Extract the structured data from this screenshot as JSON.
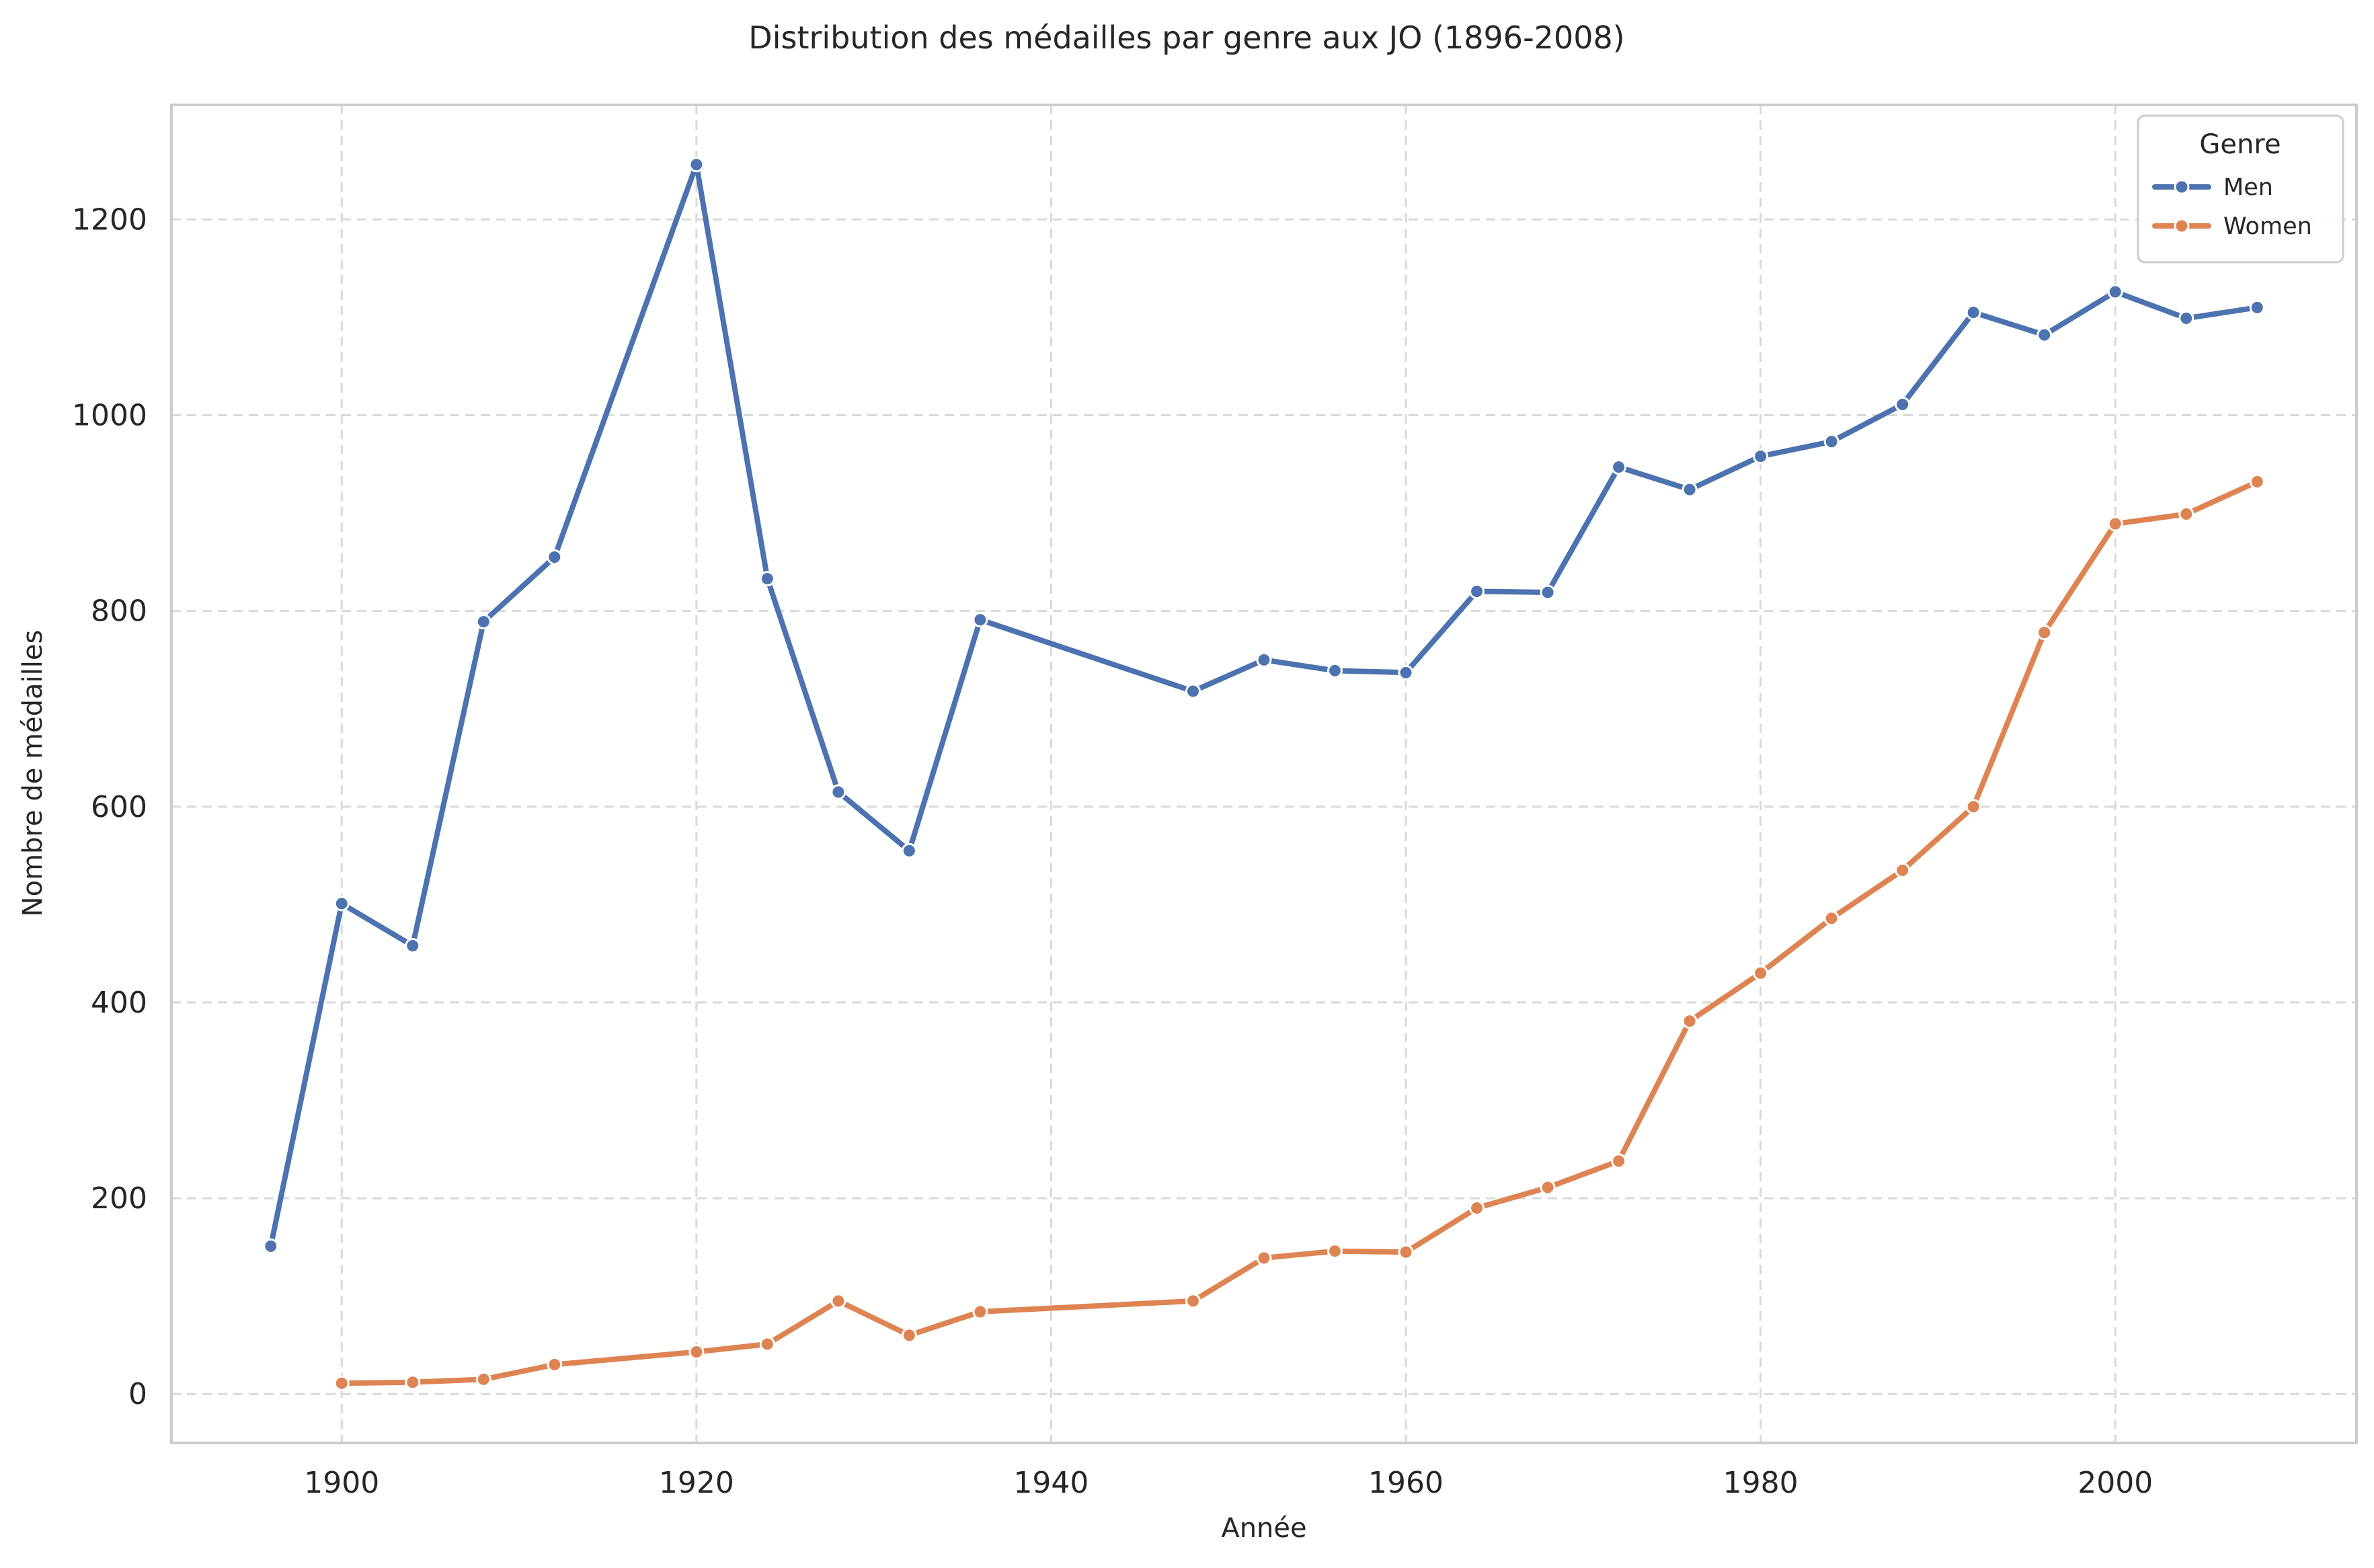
{
  "chart_data": {
    "type": "line",
    "title": "Distribution des médailles par genre aux JO (1896-2008)",
    "xlabel": "Année",
    "ylabel": "Nombre de médailles",
    "xlim": [
      1890.4,
      2013.6
    ],
    "ylim": [
      -50,
      1317
    ],
    "x_ticks": [
      1900,
      1920,
      1940,
      1960,
      1980,
      2000
    ],
    "y_ticks": [
      0,
      200,
      400,
      600,
      800,
      1000,
      1200
    ],
    "grid": true,
    "grid_style": "dashed",
    "legend": {
      "title": "Genre",
      "placement": "top-right"
    },
    "series": [
      {
        "name": "Men",
        "color": "#4c72b0",
        "marker": "circle",
        "points": [
          {
            "x": 1896,
            "y": 151
          },
          {
            "x": 1900,
            "y": 501
          },
          {
            "x": 1904,
            "y": 458
          },
          {
            "x": 1908,
            "y": 789
          },
          {
            "x": 1912,
            "y": 855
          },
          {
            "x": 1920,
            "y": 1256
          },
          {
            "x": 1924,
            "y": 833
          },
          {
            "x": 1928,
            "y": 615
          },
          {
            "x": 1932,
            "y": 555
          },
          {
            "x": 1936,
            "y": 791
          },
          {
            "x": 1948,
            "y": 718
          },
          {
            "x": 1952,
            "y": 750
          },
          {
            "x": 1956,
            "y": 739
          },
          {
            "x": 1960,
            "y": 737
          },
          {
            "x": 1964,
            "y": 820
          },
          {
            "x": 1968,
            "y": 819
          },
          {
            "x": 1972,
            "y": 947
          },
          {
            "x": 1976,
            "y": 924
          },
          {
            "x": 1980,
            "y": 958
          },
          {
            "x": 1984,
            "y": 973
          },
          {
            "x": 1988,
            "y": 1011
          },
          {
            "x": 1992,
            "y": 1105
          },
          {
            "x": 1996,
            "y": 1082
          },
          {
            "x": 2000,
            "y": 1126
          },
          {
            "x": 2004,
            "y": 1099
          },
          {
            "x": 2008,
            "y": 1110
          }
        ]
      },
      {
        "name": "Women",
        "color": "#dd8452",
        "marker": "circle",
        "points": [
          {
            "x": 1900,
            "y": 11
          },
          {
            "x": 1904,
            "y": 12
          },
          {
            "x": 1908,
            "y": 15
          },
          {
            "x": 1912,
            "y": 30
          },
          {
            "x": 1920,
            "y": 43
          },
          {
            "x": 1924,
            "y": 51
          },
          {
            "x": 1928,
            "y": 95
          },
          {
            "x": 1932,
            "y": 60
          },
          {
            "x": 1936,
            "y": 84
          },
          {
            "x": 1948,
            "y": 95
          },
          {
            "x": 1952,
            "y": 139
          },
          {
            "x": 1956,
            "y": 146
          },
          {
            "x": 1960,
            "y": 145
          },
          {
            "x": 1964,
            "y": 190
          },
          {
            "x": 1968,
            "y": 211
          },
          {
            "x": 1972,
            "y": 238
          },
          {
            "x": 1976,
            "y": 381
          },
          {
            "x": 1980,
            "y": 430
          },
          {
            "x": 1984,
            "y": 486
          },
          {
            "x": 1988,
            "y": 535
          },
          {
            "x": 1992,
            "y": 600
          },
          {
            "x": 1996,
            "y": 778
          },
          {
            "x": 2000,
            "y": 889
          },
          {
            "x": 2004,
            "y": 899
          },
          {
            "x": 2008,
            "y": 932
          }
        ]
      }
    ]
  }
}
